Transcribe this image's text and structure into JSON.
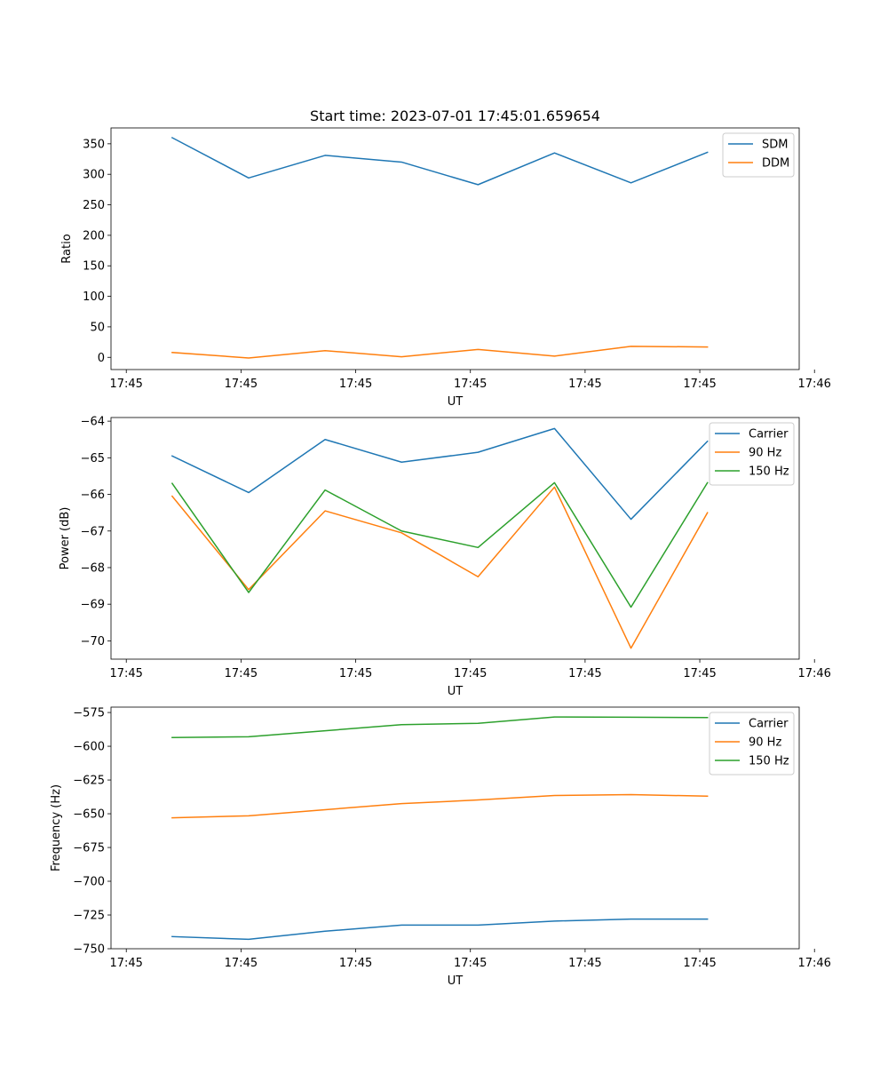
{
  "chart_data": [
    {
      "type": "line",
      "title": "Start time: 2023-07-01 17:45:01.659654",
      "xlabel": "UT",
      "ylabel": "Ratio",
      "x": [
        1,
        2,
        3,
        4,
        5,
        6,
        7,
        8
      ],
      "xlim": [
        0.2,
        9.2
      ],
      "xticks": [
        0.4,
        1.9,
        3.4,
        4.9,
        6.4,
        7.9,
        9.4
      ],
      "xtick_labels": [
        "17:45",
        "17:45",
        "17:45",
        "17:45",
        "17:45",
        "17:45",
        "17:46"
      ],
      "ylim": [
        -20,
        376
      ],
      "yticks": [
        0,
        50,
        100,
        150,
        200,
        250,
        300,
        350
      ],
      "ytick_labels": [
        "0",
        "50",
        "100",
        "150",
        "200",
        "250",
        "300",
        "350"
      ],
      "legend_position": "top-right",
      "series": [
        {
          "name": "SDM",
          "color": "#1f77b4",
          "values": [
            360,
            294,
            331,
            320,
            283,
            335,
            286,
            336
          ]
        },
        {
          "name": "DDM",
          "color": "#ff7f0e",
          "values": [
            8,
            -1,
            11,
            1,
            13,
            2,
            18,
            17
          ]
        }
      ]
    },
    {
      "type": "line",
      "title": "",
      "xlabel": "UT",
      "ylabel": "Power (dB)",
      "x": [
        1,
        2,
        3,
        4,
        5,
        6,
        7,
        8
      ],
      "xlim": [
        0.2,
        9.2
      ],
      "xticks": [
        0.4,
        1.9,
        3.4,
        4.9,
        6.4,
        7.9,
        9.4
      ],
      "xtick_labels": [
        "17:45",
        "17:45",
        "17:45",
        "17:45",
        "17:45",
        "17:45",
        "17:46"
      ],
      "ylim": [
        -70.5,
        -63.9
      ],
      "yticks": [
        -70,
        -69,
        -68,
        -67,
        -66,
        -65,
        -64
      ],
      "ytick_labels": [
        "−70",
        "−69",
        "−68",
        "−67",
        "−66",
        "−65",
        "−64"
      ],
      "legend_position": "top-right",
      "series": [
        {
          "name": "Carrier",
          "color": "#1f77b4",
          "values": [
            -64.95,
            -65.95,
            -64.5,
            -65.12,
            -64.85,
            -64.2,
            -66.68,
            -64.55
          ]
        },
        {
          "name": "90 Hz",
          "color": "#ff7f0e",
          "values": [
            -66.05,
            -68.6,
            -66.45,
            -67.05,
            -68.25,
            -65.8,
            -70.2,
            -66.5
          ]
        },
        {
          "name": "150 Hz",
          "color": "#2ca02c",
          "values": [
            -65.7,
            -68.68,
            -65.88,
            -67.0,
            -67.45,
            -65.68,
            -69.08,
            -65.68
          ]
        }
      ]
    },
    {
      "type": "line",
      "title": "",
      "xlabel": "UT",
      "ylabel": "Frequency (Hz)",
      "x": [
        1,
        2,
        3,
        4,
        5,
        6,
        7,
        8
      ],
      "xlim": [
        0.2,
        9.2
      ],
      "xticks": [
        0.4,
        1.9,
        3.4,
        4.9,
        6.4,
        7.9,
        9.4
      ],
      "xtick_labels": [
        "17:45",
        "17:45",
        "17:45",
        "17:45",
        "17:45",
        "17:45",
        "17:46"
      ],
      "ylim": [
        -750,
        -571
      ],
      "yticks": [
        -750,
        -725,
        -700,
        -675,
        -650,
        -625,
        -600,
        -575
      ],
      "ytick_labels": [
        "−750",
        "−725",
        "−700",
        "−675",
        "−650",
        "−625",
        "−600",
        "−575"
      ],
      "legend_position": "top-right",
      "series": [
        {
          "name": "Carrier",
          "color": "#1f77b4",
          "values": [
            -741,
            -743,
            -737,
            -732.5,
            -732.5,
            -729.5,
            -728,
            -728
          ]
        },
        {
          "name": "90 Hz",
          "color": "#ff7f0e",
          "values": [
            -653,
            -651.5,
            -647,
            -642.5,
            -639.8,
            -636.5,
            -635.8,
            -637
          ]
        },
        {
          "name": "150 Hz",
          "color": "#2ca02c",
          "values": [
            -593.5,
            -593,
            -588.5,
            -584,
            -583,
            -578.3,
            -578.5,
            -578.7
          ]
        }
      ]
    }
  ]
}
